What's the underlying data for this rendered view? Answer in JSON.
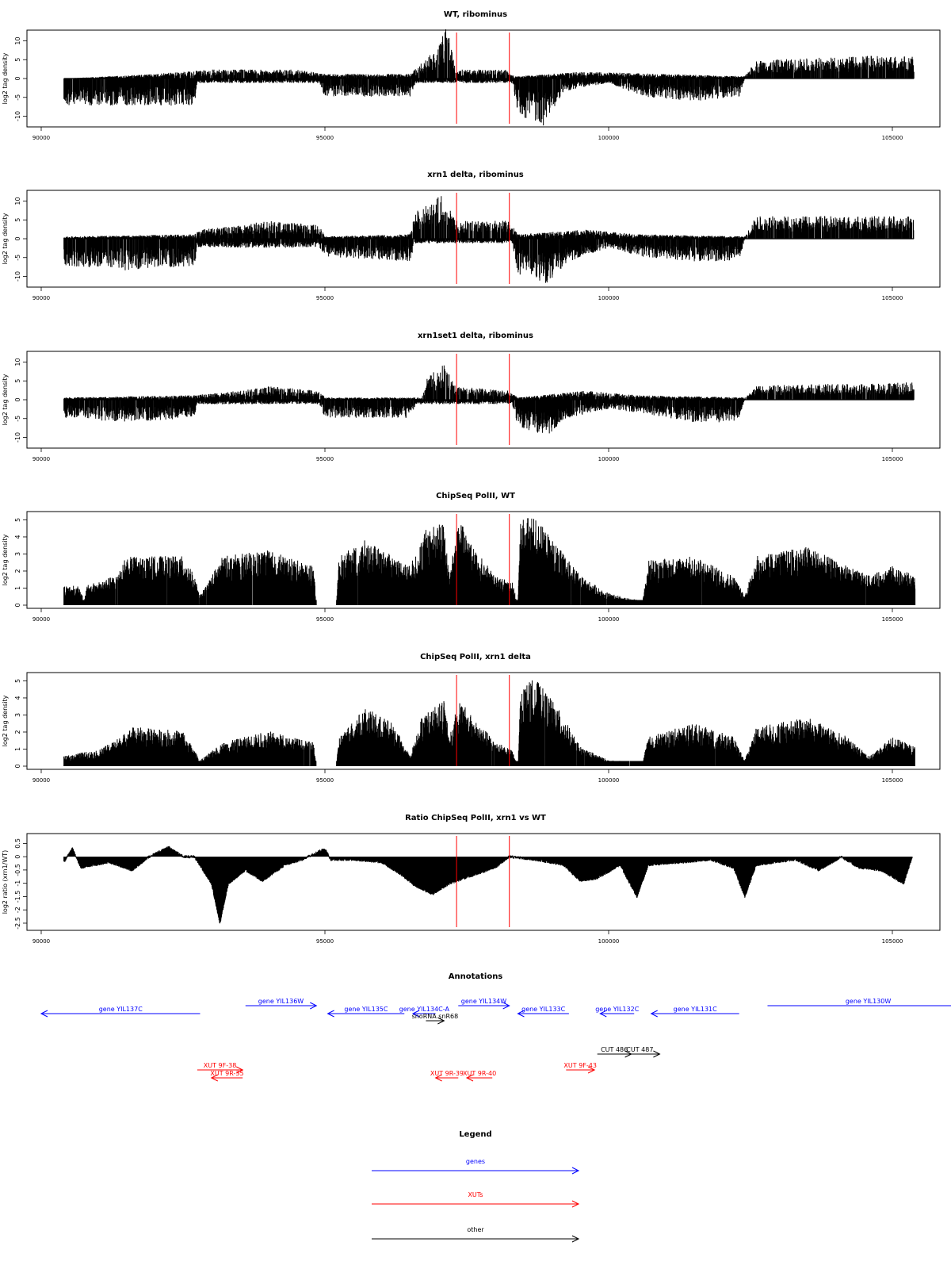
{
  "chart_data": [
    {
      "type": "bar",
      "title": "WT, ribominus",
      "ylabel": "log2 tag density",
      "xlim": [
        90000,
        105500
      ],
      "ylim": [
        -12,
        12
      ],
      "y_ticks": [
        -10,
        -5,
        0,
        5,
        10
      ],
      "x_ticks": [
        90000,
        95000,
        100000,
        105000
      ],
      "x_tick_labels": [
        "90000",
        "95000",
        "100000",
        "105000"
      ],
      "red_lines": [
        97320,
        98250
      ],
      "profile_plus": [
        [
          90400,
          0
        ],
        [
          92000,
          1
        ],
        [
          93000,
          2
        ],
        [
          94500,
          2
        ],
        [
          95000,
          1
        ],
        [
          96500,
          1
        ],
        [
          97000,
          7
        ],
        [
          97150,
          12
        ],
        [
          97300,
          2
        ],
        [
          98200,
          2
        ],
        [
          98250,
          1
        ],
        [
          98400,
          0.5
        ],
        [
          99500,
          1.5
        ],
        [
          101000,
          1
        ],
        [
          102400,
          0.5
        ],
        [
          102600,
          4
        ],
        [
          103500,
          4.5
        ],
        [
          104500,
          5
        ],
        [
          105300,
          5
        ]
      ],
      "profile_minus": [
        [
          90400,
          -6
        ],
        [
          91500,
          -6
        ],
        [
          92700,
          -6
        ],
        [
          92750,
          -1
        ],
        [
          94900,
          -1
        ],
        [
          95000,
          -4
        ],
        [
          96500,
          -4
        ],
        [
          96600,
          -1
        ],
        [
          98300,
          -1
        ],
        [
          98400,
          -8
        ],
        [
          98900,
          -11
        ],
        [
          99200,
          -3
        ],
        [
          99500,
          -2
        ],
        [
          100000,
          -1
        ],
        [
          100600,
          -4
        ],
        [
          101500,
          -5
        ],
        [
          102300,
          -4
        ],
        [
          102400,
          0
        ],
        [
          105300,
          0
        ]
      ],
      "style": "bipolar"
    },
    {
      "type": "bar",
      "title": "xrn1 delta, ribominus",
      "ylabel": "log2 tag density",
      "xlim": [
        90000,
        105500
      ],
      "ylim": [
        -12,
        12
      ],
      "y_ticks": [
        -10,
        -5,
        0,
        5,
        10
      ],
      "x_ticks": [
        90000,
        95000,
        100000,
        105000
      ],
      "x_tick_labels": [
        "90000",
        "95000",
        "100000",
        "105000"
      ],
      "red_lines": [
        97320,
        98250
      ],
      "profile_plus": [
        [
          90400,
          0.5
        ],
        [
          92700,
          1
        ],
        [
          92800,
          2
        ],
        [
          93500,
          3
        ],
        [
          94000,
          4
        ],
        [
          94900,
          3
        ],
        [
          95000,
          0.5
        ],
        [
          96500,
          1
        ],
        [
          96600,
          6
        ],
        [
          97100,
          10
        ],
        [
          97300,
          4
        ],
        [
          98250,
          4
        ],
        [
          98400,
          1
        ],
        [
          99600,
          2
        ],
        [
          100500,
          1
        ],
        [
          102400,
          0.5
        ],
        [
          102600,
          5
        ],
        [
          103500,
          5
        ],
        [
          104500,
          5
        ],
        [
          105300,
          5
        ]
      ],
      "profile_minus": [
        [
          90400,
          -6
        ],
        [
          91500,
          -7
        ],
        [
          92700,
          -6
        ],
        [
          92750,
          -2
        ],
        [
          94900,
          -2
        ],
        [
          95000,
          -4
        ],
        [
          96500,
          -5
        ],
        [
          96600,
          -1
        ],
        [
          98300,
          -1
        ],
        [
          98400,
          -8
        ],
        [
          98900,
          -10
        ],
        [
          99300,
          -5
        ],
        [
          100000,
          -2
        ],
        [
          100600,
          -4
        ],
        [
          101500,
          -5
        ],
        [
          102300,
          -5
        ],
        [
          102400,
          0
        ],
        [
          105300,
          0
        ]
      ],
      "style": "bipolar"
    },
    {
      "type": "bar",
      "title": "xrn1set1 delta, ribominus",
      "ylabel": "log2 tag density",
      "xlim": [
        90000,
        105500
      ],
      "ylim": [
        -12,
        12
      ],
      "y_ticks": [
        -10,
        -5,
        0,
        5,
        10
      ],
      "x_ticks": [
        90000,
        95000,
        100000,
        105000
      ],
      "x_tick_labels": [
        "90000",
        "95000",
        "100000",
        "105000"
      ],
      "red_lines": [
        97320,
        98250
      ],
      "profile_plus": [
        [
          90400,
          0.5
        ],
        [
          92700,
          1
        ],
        [
          93500,
          2
        ],
        [
          94000,
          3
        ],
        [
          94900,
          2
        ],
        [
          95000,
          0.5
        ],
        [
          96700,
          0.5
        ],
        [
          96800,
          5
        ],
        [
          97100,
          8
        ],
        [
          97300,
          3
        ],
        [
          98250,
          2
        ],
        [
          98400,
          0.5
        ],
        [
          99600,
          2
        ],
        [
          100500,
          1
        ],
        [
          102400,
          0.5
        ],
        [
          102600,
          3
        ],
        [
          103500,
          3.5
        ],
        [
          104500,
          3.5
        ],
        [
          105300,
          4
        ]
      ],
      "profile_minus": [
        [
          90400,
          -4
        ],
        [
          91500,
          -5
        ],
        [
          92700,
          -4
        ],
        [
          92750,
          -1
        ],
        [
          94900,
          -1
        ],
        [
          95000,
          -4
        ],
        [
          96500,
          -4
        ],
        [
          96600,
          -1
        ],
        [
          98300,
          -1
        ],
        [
          98400,
          -6
        ],
        [
          98900,
          -8
        ],
        [
          99300,
          -4
        ],
        [
          100000,
          -2
        ],
        [
          100600,
          -3
        ],
        [
          101500,
          -5
        ],
        [
          102300,
          -5
        ],
        [
          102400,
          0
        ],
        [
          105300,
          0
        ]
      ],
      "style": "bipolar"
    },
    {
      "type": "bar",
      "title": "ChipSeq PolII, WT",
      "ylabel": "log2 tag density",
      "xlim": [
        90000,
        105500
      ],
      "ylim": [
        0,
        5.3
      ],
      "y_ticks": [
        0,
        1,
        2,
        3,
        4,
        5
      ],
      "x_ticks": [
        90000,
        95000,
        100000,
        105000
      ],
      "x_tick_labels": [
        "90000",
        "95000",
        "100000",
        "105000"
      ],
      "red_lines": [
        97320,
        98250
      ],
      "profile_plus": [
        [
          90400,
          1
        ],
        [
          90700,
          1
        ],
        [
          90750,
          0
        ],
        [
          90800,
          1
        ],
        [
          91300,
          1.5
        ],
        [
          91500,
          2.5
        ],
        [
          92500,
          2.5
        ],
        [
          92700,
          1.5
        ],
        [
          92800,
          0.5
        ],
        [
          93200,
          2.5
        ],
        [
          94000,
          2.8
        ],
        [
          94800,
          2
        ],
        [
          94850,
          0
        ],
        [
          95200,
          0
        ],
        [
          95250,
          2.5
        ],
        [
          95700,
          3.3
        ],
        [
          96200,
          2.5
        ],
        [
          96500,
          2
        ],
        [
          96800,
          4
        ],
        [
          97100,
          4.2
        ],
        [
          97200,
          1.5
        ],
        [
          97350,
          4.5
        ],
        [
          97600,
          3
        ],
        [
          98000,
          1.5
        ],
        [
          98300,
          1.2
        ],
        [
          98400,
          0
        ],
        [
          98450,
          4.5
        ],
        [
          98700,
          4.5
        ],
        [
          99100,
          3
        ],
        [
          99500,
          1.5
        ],
        [
          100000,
          0.6
        ],
        [
          100600,
          0.2
        ],
        [
          100700,
          2.3
        ],
        [
          101500,
          2.5
        ],
        [
          102200,
          1.5
        ],
        [
          102400,
          0.5
        ],
        [
          102600,
          2.5
        ],
        [
          103500,
          3
        ],
        [
          104200,
          2
        ],
        [
          104600,
          1.5
        ],
        [
          105000,
          2
        ],
        [
          105400,
          1.5
        ]
      ],
      "style": "positive"
    },
    {
      "type": "bar",
      "title": "ChipSeq PolII, xrn1 delta",
      "ylabel": "log2 tag density",
      "xlim": [
        90000,
        105500
      ],
      "ylim": [
        0,
        5.3
      ],
      "y_ticks": [
        0,
        1,
        2,
        3,
        4,
        5
      ],
      "x_ticks": [
        90000,
        95000,
        100000,
        105000
      ],
      "x_tick_labels": [
        "90000",
        "95000",
        "100000",
        "105000"
      ],
      "red_lines": [
        97320,
        98250
      ],
      "profile_plus": [
        [
          90400,
          0.5
        ],
        [
          90700,
          0.7
        ],
        [
          91000,
          0.8
        ],
        [
          91400,
          1.5
        ],
        [
          91600,
          2
        ],
        [
          92500,
          1.8
        ],
        [
          92800,
          0.3
        ],
        [
          93200,
          1.2
        ],
        [
          94000,
          1.8
        ],
        [
          94800,
          1.2
        ],
        [
          94850,
          0
        ],
        [
          95200,
          0
        ],
        [
          95250,
          1.5
        ],
        [
          95700,
          3
        ],
        [
          96200,
          2.2
        ],
        [
          96500,
          0.5
        ],
        [
          96700,
          2.5
        ],
        [
          97100,
          3.5
        ],
        [
          97200,
          1.5
        ],
        [
          97350,
          3.5
        ],
        [
          97600,
          2.5
        ],
        [
          98000,
          1.3
        ],
        [
          98300,
          0.8
        ],
        [
          98400,
          0
        ],
        [
          98450,
          4
        ],
        [
          98700,
          4.5
        ],
        [
          99100,
          3
        ],
        [
          99500,
          1
        ],
        [
          100000,
          0.3
        ],
        [
          100600,
          0.2
        ],
        [
          100700,
          1.5
        ],
        [
          101500,
          2.2
        ],
        [
          102200,
          1.5
        ],
        [
          102400,
          0.3
        ],
        [
          102600,
          2
        ],
        [
          103500,
          2.5
        ],
        [
          104200,
          1.5
        ],
        [
          104600,
          0.5
        ],
        [
          105000,
          1.5
        ],
        [
          105400,
          1
        ]
      ],
      "style": "positive"
    },
    {
      "type": "area",
      "title": "Ratio ChipSeq PolII, xrn1 vs WT",
      "ylabel": "log2 ratio (xrn1/WT)",
      "xlim": [
        90000,
        105500
      ],
      "ylim": [
        -2.65,
        0.75
      ],
      "y_ticks": [
        -2.5,
        -2,
        -1.5,
        -1,
        -0.5,
        0,
        0.5
      ],
      "x_ticks": [
        90000,
        95000,
        100000,
        105000
      ],
      "x_tick_labels": [
        "90000",
        "95000",
        "100000",
        "105000"
      ],
      "red_lines": [
        97320,
        98250
      ],
      "ratio_points": [
        [
          90400,
          -0.2
        ],
        [
          90550,
          0.3
        ],
        [
          90700,
          -0.4
        ],
        [
          91200,
          -0.2
        ],
        [
          91600,
          -0.5
        ],
        [
          91900,
          0
        ],
        [
          92250,
          0.35
        ],
        [
          92500,
          0
        ],
        [
          92700,
          0
        ],
        [
          92850,
          -0.5
        ],
        [
          93000,
          -1.0
        ],
        [
          93150,
          -2.5
        ],
        [
          93300,
          -1.0
        ],
        [
          93600,
          -0.5
        ],
        [
          93900,
          -0.9
        ],
        [
          94300,
          -0.3
        ],
        [
          94600,
          -0.1
        ],
        [
          95000,
          0.3
        ],
        [
          95100,
          -0.1
        ],
        [
          95500,
          -0.1
        ],
        [
          96000,
          -0.2
        ],
        [
          96300,
          -0.6
        ],
        [
          96600,
          -1.1
        ],
        [
          96900,
          -1.4
        ],
        [
          97200,
          -1.0
        ],
        [
          97600,
          -0.7
        ],
        [
          98000,
          -0.4
        ],
        [
          98250,
          0
        ],
        [
          98700,
          -0.1
        ],
        [
          99200,
          -0.3
        ],
        [
          99500,
          -0.9
        ],
        [
          99800,
          -0.8
        ],
        [
          100200,
          -0.3
        ],
        [
          100500,
          -1.5
        ],
        [
          100700,
          -0.3
        ],
        [
          101300,
          -0.2
        ],
        [
          101800,
          -0.1
        ],
        [
          102200,
          -0.4
        ],
        [
          102400,
          -1.5
        ],
        [
          102600,
          -0.3
        ],
        [
          103300,
          -0.1
        ],
        [
          103700,
          -0.5
        ],
        [
          104100,
          0
        ],
        [
          104400,
          -0.4
        ],
        [
          104800,
          -0.5
        ],
        [
          105200,
          -1.0
        ],
        [
          105350,
          0
        ]
      ]
    },
    {
      "type": "table",
      "title": "Annotations",
      "xlim": [
        90000,
        105500
      ],
      "features": [
        {
          "label": "gene YIL137C",
          "start": 90000,
          "end": 92800,
          "strand": "-",
          "color": "#0000ff",
          "row": 1
        },
        {
          "label": "gene YIL136W",
          "start": 93600,
          "end": 94850,
          "strand": "+",
          "color": "#0000ff",
          "row": 0
        },
        {
          "label": "gene YIL135C",
          "start": 95050,
          "end": 96400,
          "strand": "-",
          "color": "#0000ff",
          "row": 1
        },
        {
          "label": "gene YIL134C-A",
          "start": 96550,
          "end": 96950,
          "strand": "-",
          "color": "#0000ff",
          "row": 1
        },
        {
          "label": "gene YIL134W",
          "start": 97350,
          "end": 98250,
          "strand": "+",
          "color": "#0000ff",
          "row": 0
        },
        {
          "label": "snoRNA snR68",
          "start": 96780,
          "end": 97100,
          "strand": "+",
          "color": "#000000",
          "row": 2
        },
        {
          "label": "gene YIL133C",
          "start": 98400,
          "end": 99300,
          "strand": "-",
          "color": "#0000ff",
          "row": 1
        },
        {
          "label": "gene YIL132C",
          "start": 99850,
          "end": 100450,
          "strand": "-",
          "color": "#0000ff",
          "row": 1
        },
        {
          "label": "gene YIL131C",
          "start": 100750,
          "end": 102300,
          "strand": "-",
          "color": "#0000ff",
          "row": 1
        },
        {
          "label": "gene YIL130W",
          "start": 102800,
          "end": 106350,
          "strand": "+",
          "color": "#0000ff",
          "row": 0
        },
        {
          "label": "CUT 486",
          "start": 99800,
          "end": 100400,
          "strand": "+",
          "color": "#000000",
          "row": 4
        },
        {
          "label": "CUT 487",
          "start": 100200,
          "end": 100900,
          "strand": "+",
          "color": "#000000",
          "row": 4
        },
        {
          "label": "XUT 9F-38",
          "start": 92750,
          "end": 93550,
          "strand": "+",
          "color": "#ff0000",
          "row": 5
        },
        {
          "label": "XUT 9R-35",
          "start": 93000,
          "end": 93550,
          "strand": "-",
          "color": "#ff0000",
          "row": 6
        },
        {
          "label": "XUT 9R-39",
          "start": 96950,
          "end": 97350,
          "strand": "-",
          "color": "#ff0000",
          "row": 7
        },
        {
          "label": "XUT 9R-40",
          "start": 97500,
          "end": 97950,
          "strand": "-",
          "color": "#ff0000",
          "row": 7
        },
        {
          "label": "XUT 9F-43",
          "start": 99250,
          "end": 99750,
          "strand": "+",
          "color": "#ff0000",
          "row": 5
        }
      ]
    },
    {
      "type": "table",
      "title": "Legend",
      "entries": [
        {
          "label": "genes",
          "color": "#0000ff"
        },
        {
          "label": "XUTs",
          "color": "#ff0000"
        },
        {
          "label": "other",
          "color": "#000000"
        }
      ]
    }
  ]
}
